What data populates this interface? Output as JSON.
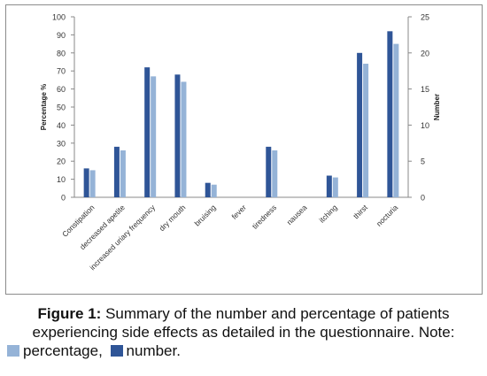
{
  "chart_data": {
    "type": "bar",
    "categories": [
      "Constipation",
      "decreased apetite",
      "increased uriary frequency",
      "dry mouth",
      "bruising",
      "fever",
      "tiredness",
      "nausea",
      "itching",
      "thirst",
      "nocturia"
    ],
    "series": [
      {
        "name": "number",
        "axis": "right",
        "color": "#2f5597",
        "values": [
          4,
          7,
          18,
          17,
          2,
          0,
          7,
          0,
          3,
          20,
          23
        ]
      },
      {
        "name": "percentage",
        "axis": "left",
        "color": "#95b3d7",
        "values": [
          15,
          26,
          67,
          64,
          7,
          0,
          26,
          0,
          11,
          74,
          85
        ]
      }
    ],
    "ylabel": "Percentage %",
    "y2label": "Number",
    "ylim": [
      0,
      100
    ],
    "y2lim": [
      0,
      25
    ],
    "yticks": [
      "0",
      "10",
      "20",
      "30",
      "40",
      "50",
      "60",
      "70",
      "80",
      "90",
      "100"
    ],
    "y2ticks": [
      "0",
      "5",
      "10",
      "15",
      "20",
      "25"
    ],
    "grid": false
  },
  "caption": {
    "label": "Figure 1:",
    "text_line1": "Summary of the number and percentage of patients",
    "text_line2": "experiencing side effects as detailed in the questionnaire. Note:",
    "legend_percentage": "percentage,",
    "legend_number": "number."
  }
}
